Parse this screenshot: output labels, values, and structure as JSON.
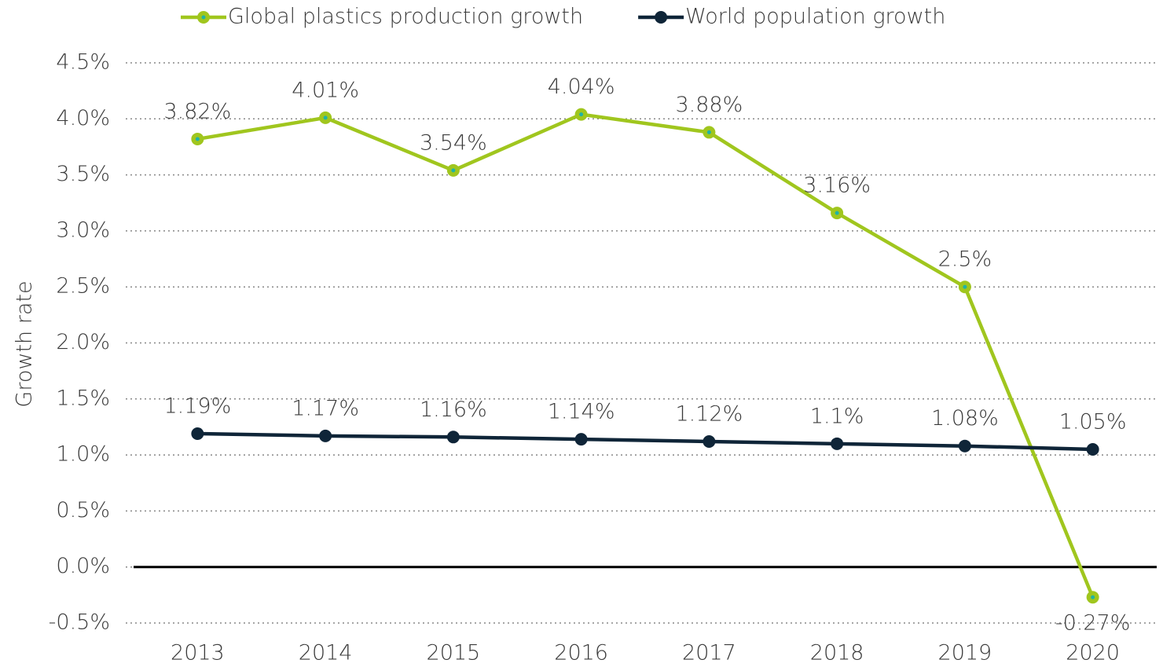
{
  "chart_data": {
    "type": "line",
    "categories": [
      "2013",
      "2014",
      "2015",
      "2016",
      "2017",
      "2018",
      "2019",
      "2020"
    ],
    "y_label": "Growth rate",
    "series": [
      {
        "name": "Global plastics production growth",
        "color": "#a0c61e",
        "marker_center": "#1fb3a6",
        "values": [
          3.82,
          4.01,
          3.54,
          4.04,
          3.88,
          3.16,
          2.5,
          -0.27
        ],
        "value_labels": [
          "3.82%",
          "4.01%",
          "3.54%",
          "4.04%",
          "3.88%",
          "3.16%",
          "2.5%",
          "-0.27%"
        ]
      },
      {
        "name": "World population growth",
        "color": "#0f2538",
        "values": [
          1.19,
          1.17,
          1.16,
          1.14,
          1.12,
          1.1,
          1.08,
          1.05
        ],
        "value_labels": [
          "1.19%",
          "1.17%",
          "1.16%",
          "1.14%",
          "1.12%",
          "1.1%",
          "1.08%",
          "1.05%"
        ]
      }
    ],
    "ylim": [
      -0.5,
      4.5
    ],
    "yticks": [
      {
        "value": -0.5,
        "label": "-0.5%"
      },
      {
        "value": 0,
        "label": "0.0%"
      },
      {
        "value": 0.5,
        "label": "0.5%"
      },
      {
        "value": 1,
        "label": "1.0%"
      },
      {
        "value": 1.5,
        "label": "1.5%"
      },
      {
        "value": 2,
        "label": "2.0%"
      },
      {
        "value": 2.5,
        "label": "2.5%"
      },
      {
        "value": 3,
        "label": "3.0%"
      },
      {
        "value": 3.5,
        "label": "3.5%"
      },
      {
        "value": 4,
        "label": "4.0%"
      },
      {
        "value": 4.5,
        "label": "4.5%"
      }
    ],
    "grid": true,
    "legend": "top"
  }
}
